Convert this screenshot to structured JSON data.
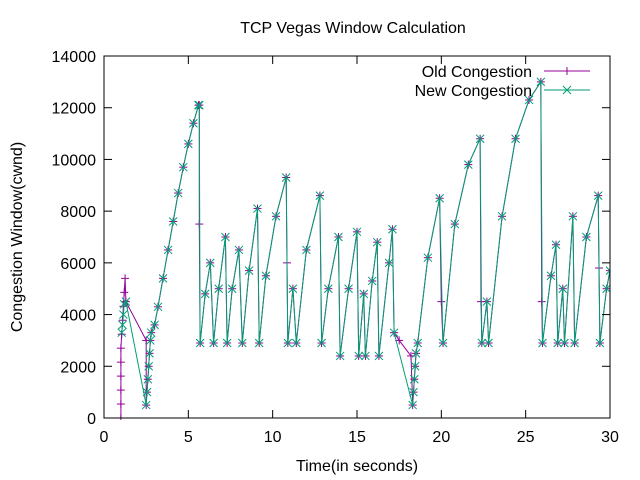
{
  "chart_data": {
    "type": "line",
    "title": "TCP Vegas Window Calculation",
    "xlabel": "Time(in seconds)",
    "ylabel": "Congestion Window(cwnd)",
    "xlim": [
      0,
      30
    ],
    "ylim": [
      0,
      14000
    ],
    "xticks": [
      "0",
      "5",
      "10",
      "15",
      "20",
      "25",
      "30"
    ],
    "yticks": [
      "0",
      "2000",
      "4000",
      "6000",
      "8000",
      "10000",
      "12000",
      "14000"
    ],
    "grid": false,
    "legend_position": "top-right",
    "legend": [
      "Old Congestion",
      "New Congestion"
    ],
    "series": [
      {
        "name": "Old Congestion",
        "color": "#94009a",
        "marker": "plus",
        "points": [
          [
            1.0,
            0
          ],
          [
            1.0,
            540
          ],
          [
            1.0,
            1080
          ],
          [
            1.0,
            1620
          ],
          [
            1.0,
            2160
          ],
          [
            1.0,
            2700
          ],
          [
            1.05,
            3240
          ],
          [
            1.1,
            3780
          ],
          [
            1.15,
            4320
          ],
          [
            1.2,
            4860
          ],
          [
            1.25,
            5400
          ],
          [
            1.3,
            4500
          ],
          [
            2.5,
            3000
          ],
          [
            2.5,
            500
          ],
          [
            2.55,
            1000
          ],
          [
            2.6,
            1500
          ],
          [
            2.65,
            2000
          ],
          [
            2.7,
            2500
          ],
          [
            2.75,
            3000
          ],
          [
            2.8,
            3300
          ],
          [
            3.0,
            3600
          ],
          [
            3.2,
            4300
          ],
          [
            3.5,
            5400
          ],
          [
            3.8,
            6500
          ],
          [
            4.1,
            7600
          ],
          [
            4.4,
            8700
          ],
          [
            4.7,
            9700
          ],
          [
            5.0,
            10600
          ],
          [
            5.3,
            11400
          ],
          [
            5.6,
            12100
          ],
          [
            5.65,
            12100
          ],
          [
            5.65,
            7500
          ],
          [
            5.7,
            2900
          ],
          [
            6.0,
            4800
          ],
          [
            6.3,
            6000
          ],
          [
            6.5,
            2900
          ],
          [
            6.8,
            5000
          ],
          [
            7.2,
            7000
          ],
          [
            7.3,
            2900
          ],
          [
            7.6,
            5000
          ],
          [
            8.0,
            6500
          ],
          [
            8.2,
            2900
          ],
          [
            8.6,
            5700
          ],
          [
            9.1,
            8100
          ],
          [
            9.2,
            2900
          ],
          [
            9.6,
            5500
          ],
          [
            10.2,
            7800
          ],
          [
            10.8,
            9300
          ],
          [
            10.85,
            6000
          ],
          [
            10.9,
            2900
          ],
          [
            11.2,
            5000
          ],
          [
            11.4,
            2900
          ],
          [
            12.0,
            6500
          ],
          [
            12.8,
            8600
          ],
          [
            12.9,
            2900
          ],
          [
            13.3,
            5000
          ],
          [
            13.9,
            7000
          ],
          [
            14.0,
            2400
          ],
          [
            14.5,
            5000
          ],
          [
            15.0,
            7200
          ],
          [
            15.1,
            2400
          ],
          [
            15.4,
            4800
          ],
          [
            15.5,
            2400
          ],
          [
            15.9,
            5300
          ],
          [
            16.2,
            6800
          ],
          [
            16.3,
            2400
          ],
          [
            16.9,
            6000
          ],
          [
            17.1,
            7300
          ],
          [
            17.2,
            3300
          ],
          [
            17.5,
            3000
          ],
          [
            18.2,
            2400
          ],
          [
            18.3,
            500
          ],
          [
            18.35,
            1000
          ],
          [
            18.4,
            1500
          ],
          [
            18.45,
            2000
          ],
          [
            18.5,
            2500
          ],
          [
            18.6,
            2900
          ],
          [
            19.2,
            6200
          ],
          [
            19.9,
            8500
          ],
          [
            20.0,
            4500
          ],
          [
            20.1,
            2900
          ],
          [
            20.8,
            7500
          ],
          [
            21.6,
            9800
          ],
          [
            22.3,
            10800
          ],
          [
            22.35,
            4500
          ],
          [
            22.4,
            2900
          ],
          [
            22.7,
            4500
          ],
          [
            22.8,
            2900
          ],
          [
            23.6,
            7800
          ],
          [
            24.4,
            10800
          ],
          [
            25.2,
            12300
          ],
          [
            25.9,
            13000
          ],
          [
            25.95,
            4500
          ],
          [
            26.0,
            2900
          ],
          [
            26.5,
            5500
          ],
          [
            26.8,
            6700
          ],
          [
            26.9,
            2900
          ],
          [
            27.2,
            5000
          ],
          [
            27.3,
            2900
          ],
          [
            27.8,
            7800
          ],
          [
            27.9,
            2900
          ],
          [
            28.6,
            7000
          ],
          [
            29.3,
            8600
          ],
          [
            29.35,
            5800
          ],
          [
            29.4,
            2900
          ],
          [
            29.8,
            5000
          ],
          [
            30.0,
            5700
          ]
        ]
      },
      {
        "name": "New Congestion",
        "color": "#009e73",
        "marker": "x",
        "points": [
          [
            1.05,
            3300
          ],
          [
            1.1,
            3600
          ],
          [
            1.15,
            4000
          ],
          [
            1.2,
            4400
          ],
          [
            1.3,
            4500
          ],
          [
            2.5,
            500
          ],
          [
            2.55,
            1000
          ],
          [
            2.6,
            1500
          ],
          [
            2.65,
            2000
          ],
          [
            2.7,
            2500
          ],
          [
            2.75,
            3000
          ],
          [
            2.8,
            3300
          ],
          [
            3.0,
            3600
          ],
          [
            3.2,
            4300
          ],
          [
            3.5,
            5400
          ],
          [
            3.8,
            6500
          ],
          [
            4.1,
            7600
          ],
          [
            4.4,
            8700
          ],
          [
            4.7,
            9700
          ],
          [
            5.0,
            10600
          ],
          [
            5.3,
            11400
          ],
          [
            5.6,
            12100
          ],
          [
            5.65,
            12100
          ],
          [
            5.7,
            2900
          ],
          [
            6.0,
            4800
          ],
          [
            6.3,
            6000
          ],
          [
            6.5,
            2900
          ],
          [
            6.8,
            5000
          ],
          [
            7.2,
            7000
          ],
          [
            7.3,
            2900
          ],
          [
            7.6,
            5000
          ],
          [
            8.0,
            6500
          ],
          [
            8.2,
            2900
          ],
          [
            8.6,
            5700
          ],
          [
            9.1,
            8100
          ],
          [
            9.2,
            2900
          ],
          [
            9.6,
            5500
          ],
          [
            10.2,
            7800
          ],
          [
            10.8,
            9300
          ],
          [
            10.9,
            2900
          ],
          [
            11.2,
            5000
          ],
          [
            11.4,
            2900
          ],
          [
            12.0,
            6500
          ],
          [
            12.8,
            8600
          ],
          [
            12.9,
            2900
          ],
          [
            13.3,
            5000
          ],
          [
            13.9,
            7000
          ],
          [
            14.0,
            2400
          ],
          [
            14.5,
            5000
          ],
          [
            15.0,
            7200
          ],
          [
            15.1,
            2400
          ],
          [
            15.4,
            4800
          ],
          [
            15.5,
            2400
          ],
          [
            15.9,
            5300
          ],
          [
            16.2,
            6800
          ],
          [
            16.3,
            2400
          ],
          [
            16.9,
            6000
          ],
          [
            17.1,
            7300
          ],
          [
            17.2,
            3300
          ],
          [
            18.3,
            500
          ],
          [
            18.35,
            1000
          ],
          [
            18.4,
            1500
          ],
          [
            18.45,
            2000
          ],
          [
            18.5,
            2500
          ],
          [
            18.6,
            2900
          ],
          [
            19.2,
            6200
          ],
          [
            19.9,
            8500
          ],
          [
            20.1,
            2900
          ],
          [
            20.8,
            7500
          ],
          [
            21.6,
            9800
          ],
          [
            22.3,
            10800
          ],
          [
            22.4,
            2900
          ],
          [
            22.7,
            4500
          ],
          [
            22.8,
            2900
          ],
          [
            23.6,
            7800
          ],
          [
            24.4,
            10800
          ],
          [
            25.2,
            12300
          ],
          [
            25.9,
            13000
          ],
          [
            26.0,
            2900
          ],
          [
            26.5,
            5500
          ],
          [
            26.8,
            6700
          ],
          [
            26.9,
            2900
          ],
          [
            27.2,
            5000
          ],
          [
            27.3,
            2900
          ],
          [
            27.8,
            7800
          ],
          [
            27.9,
            2900
          ],
          [
            28.6,
            7000
          ],
          [
            29.3,
            8600
          ],
          [
            29.4,
            2900
          ],
          [
            29.8,
            5000
          ],
          [
            30.0,
            5700
          ]
        ]
      }
    ]
  }
}
